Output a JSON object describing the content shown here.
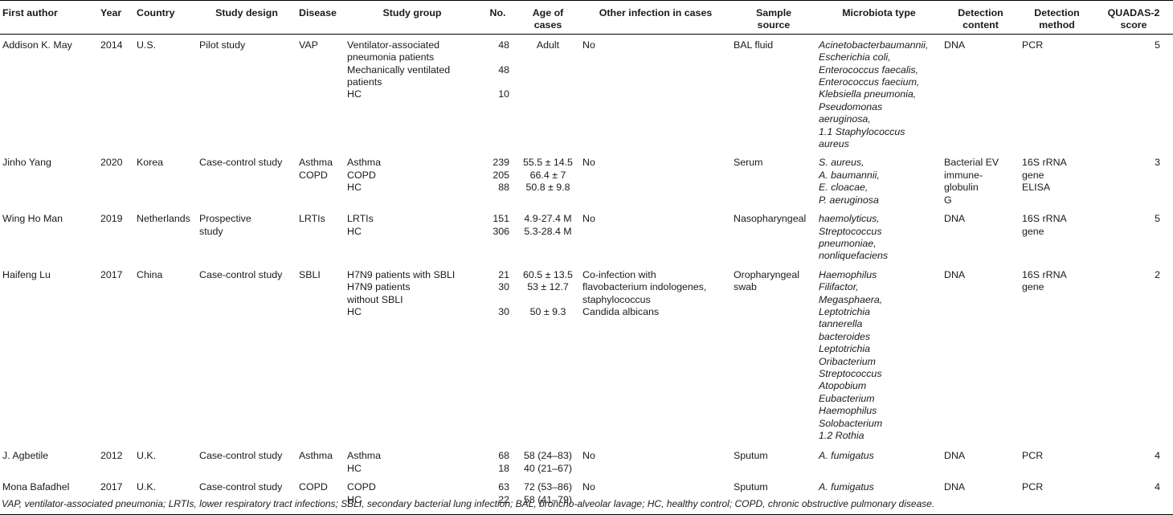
{
  "headers": [
    {
      "lines": [
        "First author"
      ],
      "align": "left"
    },
    {
      "lines": [
        "Year"
      ],
      "align": "left"
    },
    {
      "lines": [
        "Country"
      ],
      "align": "left"
    },
    {
      "lines": [
        "Study design"
      ],
      "align": "center"
    },
    {
      "lines": [
        "Disease"
      ],
      "align": "left"
    },
    {
      "lines": [
        "Study group"
      ],
      "align": "center"
    },
    {
      "lines": [
        "No."
      ],
      "align": "center"
    },
    {
      "lines": [
        "Age of",
        "cases"
      ],
      "align": "center"
    },
    {
      "lines": [
        "Other infection in cases"
      ],
      "align": "center"
    },
    {
      "lines": [
        "Sample",
        "source"
      ],
      "align": "center"
    },
    {
      "lines": [
        "Microbiota type"
      ],
      "align": "center"
    },
    {
      "lines": [
        "Detection",
        "content"
      ],
      "align": "center"
    },
    {
      "lines": [
        "Detection",
        "method"
      ],
      "align": "center"
    },
    {
      "lines": [
        "QUADAS-2",
        "score"
      ],
      "align": "center"
    }
  ],
  "rows": [
    {
      "first_author": [
        "Addison K. May"
      ],
      "year": [
        "2014"
      ],
      "country": [
        "U.S."
      ],
      "study_design": [
        "Pilot study"
      ],
      "disease": [
        "VAP"
      ],
      "study_group": [
        "Ventilator-associated",
        "pneumonia patients",
        "Mechanically ventilated",
        "patients",
        "HC"
      ],
      "no": [
        "48",
        "",
        "48",
        "",
        "10"
      ],
      "age": [
        "Adult"
      ],
      "other_infection": [
        "No"
      ],
      "sample_source": [
        "BAL fluid"
      ],
      "microbiota": [
        "Acinetobacterbaumannii,",
        "Escherichia coli,",
        "Enterococcus faecalis,",
        "Enterococcus faecium,",
        "Klebsiella pneumonia,",
        "Pseudomonas",
        "aeruginosa,",
        "1.1   Staphylococcus",
        "aureus"
      ],
      "detection_content": [
        "DNA"
      ],
      "detection_method": [
        "PCR"
      ],
      "score": [
        "5"
      ]
    },
    {
      "first_author": [
        "Jinho Yang"
      ],
      "year": [
        "2020"
      ],
      "country": [
        "Korea"
      ],
      "study_design": [
        "Case-control study"
      ],
      "disease": [
        "Asthma",
        "COPD"
      ],
      "study_group": [
        "Asthma",
        "COPD",
        "HC"
      ],
      "no": [
        "239",
        "205",
        "88"
      ],
      "age": [
        "55.5 ± 14.5",
        "66.4 ± 7",
        "50.8 ± 9.8"
      ],
      "other_infection": [
        "No"
      ],
      "sample_source": [
        "Serum"
      ],
      "microbiota": [
        "S. aureus,",
        "A. baumannii,",
        "E. cloacae,",
        "P. aeruginosa"
      ],
      "detection_content": [
        "Bacterial EV",
        "immune-",
        "globulin",
        "G"
      ],
      "detection_method": [
        "16S rRNA",
        "gene",
        "ELISA"
      ],
      "score": [
        "3"
      ]
    },
    {
      "first_author": [
        "Wing Ho Man"
      ],
      "year": [
        "2019"
      ],
      "country": [
        "Netherlands"
      ],
      "study_design": [
        "Prospective",
        "study"
      ],
      "disease": [
        "LRTIs"
      ],
      "study_group": [
        "LRTIs",
        "HC"
      ],
      "no": [
        "151",
        "306"
      ],
      "age": [
        "4.9-27.4 M",
        "5.3-28.4 M"
      ],
      "other_infection": [
        "No"
      ],
      "sample_source": [
        "Nasopharyngeal"
      ],
      "microbiota": [
        "haemolyticus,",
        "Streptococcus",
        "pneumoniae,",
        "nonliquefaciens"
      ],
      "detection_content": [
        "DNA"
      ],
      "detection_method": [
        "16S rRNA",
        "gene"
      ],
      "score": [
        "5"
      ]
    },
    {
      "first_author": [
        "Haifeng Lu"
      ],
      "year": [
        "2017"
      ],
      "country": [
        "China"
      ],
      "study_design": [
        "Case-control study"
      ],
      "disease": [
        "SBLI"
      ],
      "study_group": [
        "H7N9 patients with SBLI",
        "H7N9 patients",
        "without SBLI",
        "HC"
      ],
      "no": [
        "21",
        "30",
        "",
        "30"
      ],
      "age": [
        "60.5 ± 13.5",
        "53 ± 12.7",
        "",
        "50 ± 9.3"
      ],
      "other_infection": [
        "Co-infection with",
        "flavobacterium indologenes,",
        "staphylococcus",
        "Candida albicans"
      ],
      "sample_source": [
        "Oropharyngeal",
        "swab"
      ],
      "microbiota": [
        "Haemophilus",
        "Filifactor,",
        "Megasphaera,",
        "Leptotrichia",
        "tannerella",
        "bacteroides",
        "Leptotrichia",
        "Oribacterium",
        "Streptococcus",
        "Atopobium",
        "Eubacterium",
        "Haemophilus",
        "Solobacterium",
        "1.2   Rothia"
      ],
      "detection_content": [
        "DNA"
      ],
      "detection_method": [
        "16S rRNA",
        "gene"
      ],
      "score": [
        "2"
      ]
    },
    {
      "first_author": [
        "J. Agbetile"
      ],
      "year": [
        "2012"
      ],
      "country": [
        "U.K."
      ],
      "study_design": [
        "Case-control study"
      ],
      "disease": [
        "Asthma"
      ],
      "study_group": [
        "Asthma",
        "HC"
      ],
      "no": [
        "68",
        "18"
      ],
      "age": [
        "58 (24–83)",
        "40 (21–67)"
      ],
      "other_infection": [
        "No"
      ],
      "sample_source": [
        "Sputum"
      ],
      "microbiota": [
        "A. fumigatus"
      ],
      "detection_content": [
        "DNA"
      ],
      "detection_method": [
        "PCR"
      ],
      "score": [
        "4"
      ]
    },
    {
      "first_author": [
        "Mona Bafadhel"
      ],
      "year": [
        "2017"
      ],
      "country": [
        "U.K."
      ],
      "study_design": [
        "Case-control study"
      ],
      "disease": [
        "COPD"
      ],
      "study_group": [
        "COPD",
        "HC"
      ],
      "no": [
        "63",
        "22"
      ],
      "age": [
        "72 (53–86)",
        "58 (41–79)"
      ],
      "other_infection": [
        "No"
      ],
      "sample_source": [
        "Sputum"
      ],
      "microbiota": [
        "A. fumigatus"
      ],
      "detection_content": [
        "DNA"
      ],
      "detection_method": [
        "PCR"
      ],
      "score": [
        "4"
      ]
    }
  ],
  "footnote": "VAP, ventilator-associated pneumonia; LRTIs, lower respiratory tract infections; SBLI, secondary bacterial lung infection; BAL, broncho-alveolar lavage; HC, healthy control; COPD, chronic obstructive pulmonary disease."
}
